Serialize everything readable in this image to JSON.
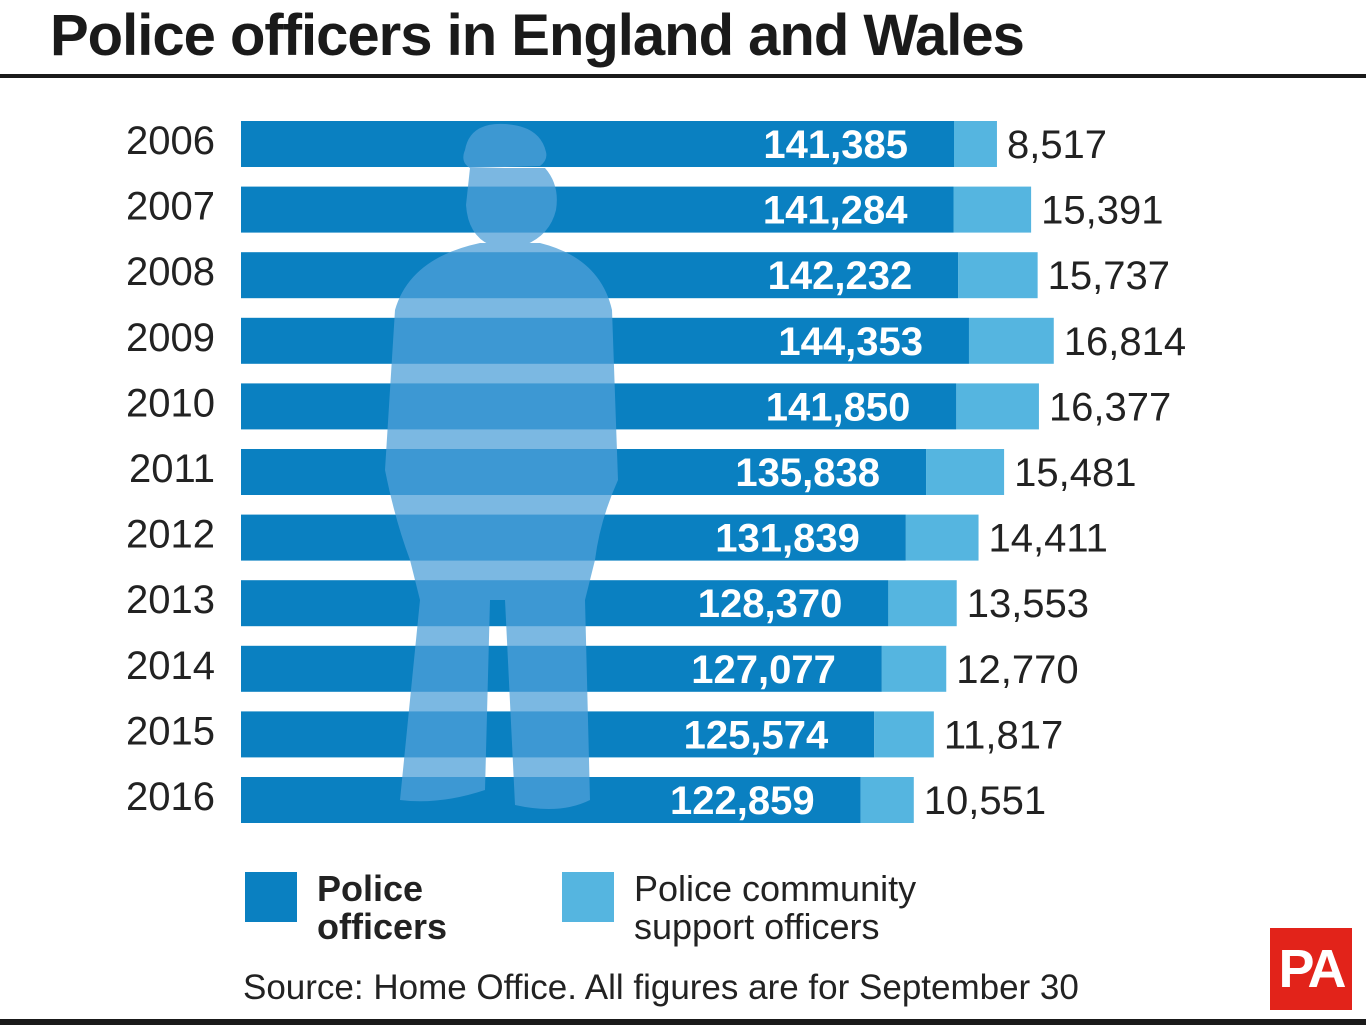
{
  "title": "Police officers in England and Wales",
  "colors": {
    "police_officers": "#0a80c1",
    "pcso": "#55b5e0",
    "silhouette": "#4fa0d8",
    "pa_logo": "#e2231a"
  },
  "legend": {
    "police_officers": "Police officers",
    "pcso": "Police community support officers"
  },
  "source": "Source: Home Office. All figures are for September 30",
  "logo_text": "PA",
  "chart_data": {
    "type": "bar",
    "orientation": "horizontal",
    "stacked": true,
    "title": "Police officers in England and Wales",
    "categories": [
      "2006",
      "2007",
      "2008",
      "2009",
      "2010",
      "2011",
      "2012",
      "2013",
      "2014",
      "2015",
      "2016"
    ],
    "series": [
      {
        "name": "Police officers",
        "values": [
          141385,
          141284,
          142232,
          144353,
          141850,
          135838,
          131839,
          128370,
          127077,
          125574,
          122859
        ],
        "labels": [
          "141,385",
          "141,284",
          "142,232",
          "144,353",
          "141,850",
          "135,838",
          "131,839",
          "128,370",
          "127,077",
          "125,574",
          "122,859"
        ]
      },
      {
        "name": "Police community support officers",
        "values": [
          8517,
          15391,
          15737,
          16814,
          16377,
          15481,
          14411,
          13553,
          12770,
          11817,
          10551
        ],
        "labels": [
          "8,517",
          "15,391",
          "15,737",
          "16,814",
          "16,377",
          "15,481",
          "14,411",
          "13,553",
          "12,770",
          "11,817",
          "10,551"
        ]
      }
    ],
    "legend_position": "bottom",
    "grid": false
  }
}
